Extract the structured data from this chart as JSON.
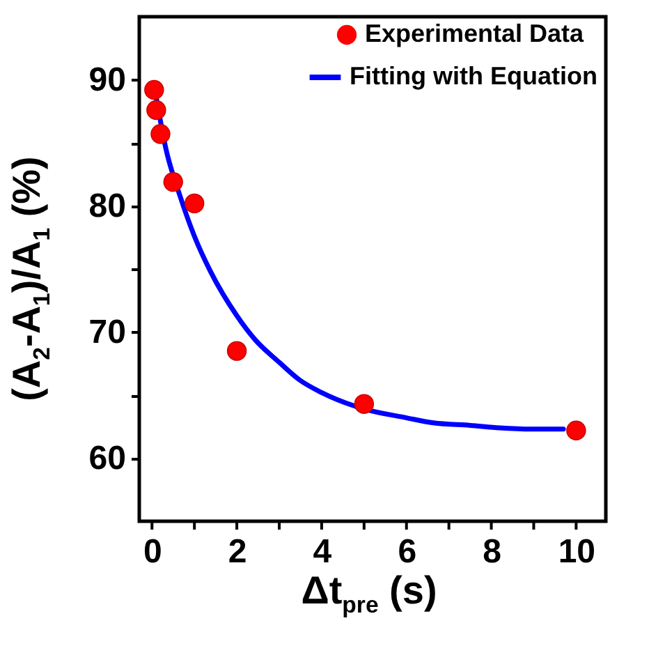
{
  "chart_data": {
    "type": "scatter",
    "xlabel": "Δt$_{pre}$ (s)",
    "ylabel": "(A$_{2}$-A$_{1}$)/A$_{1}$ (%)",
    "xlim": [
      -0.3,
      10.7
    ],
    "ylim": [
      55,
      95
    ],
    "xticks": [
      0,
      {
        "value": 1,
        "label": null
      },
      2,
      {
        "value": 3,
        "label": null
      },
      4,
      {
        "value": 5,
        "label": null
      },
      6,
      {
        "value": 7,
        "label": null
      },
      8,
      {
        "value": 9,
        "label": null
      },
      10
    ],
    "yticks": [
      60,
      {
        "value": 65,
        "label": null
      },
      70,
      {
        "value": 75,
        "label": null
      },
      80,
      {
        "value": 85,
        "label": null
      },
      90
    ],
    "grid": false,
    "legend": "top right",
    "series": [
      {
        "name": "Experimental Data",
        "type": "scatter",
        "marker": "circle",
        "color": "#ff0000",
        "x": [
          0.05,
          0.1,
          0.2,
          0.5,
          1.0,
          2.0,
          5.0,
          10.0
        ],
        "values": [
          89.2,
          87.6,
          85.7,
          81.9,
          80.2,
          68.5,
          64.3,
          62.2
        ]
      },
      {
        "name": "Fitting with Equation",
        "type": "line",
        "line_style": "solid",
        "color": "#0000ff",
        "x": [
          0.1,
          0.33,
          0.65,
          1.0,
          1.38,
          2.0,
          2.43,
          3.0,
          3.48,
          4.0,
          5.0,
          6.0,
          6.63,
          7.5,
          8.2,
          9.0,
          9.7
        ],
        "values": [
          88.6,
          84.5,
          80.9,
          77.6,
          74.8,
          71.3,
          69.4,
          67.6,
          66.2,
          65.2,
          63.9,
          63.2,
          62.8,
          62.6,
          62.4,
          62.3,
          62.3
        ]
      }
    ]
  }
}
